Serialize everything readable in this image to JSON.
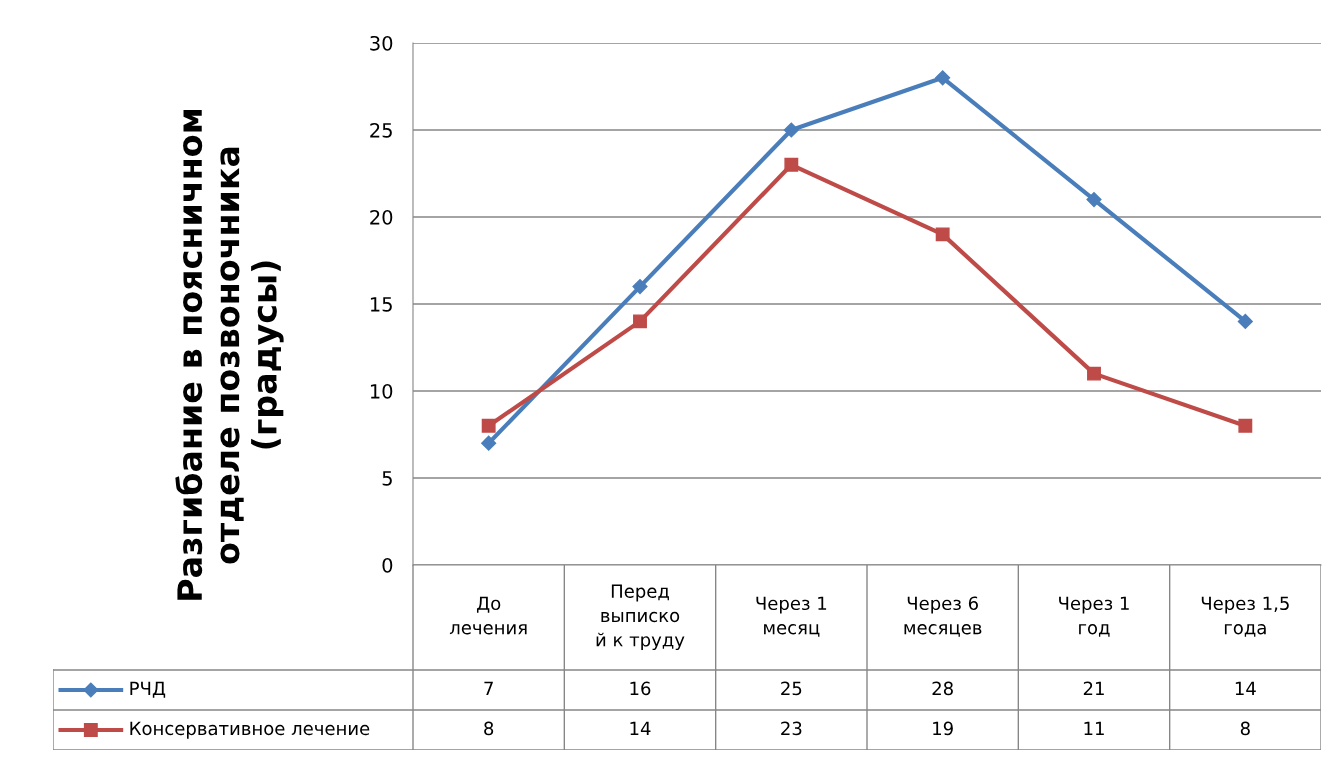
{
  "chart_data": {
    "type": "line",
    "ylabel": "Разгибание в поясничном\nотделе позвоночника\n(градусы)",
    "categories": [
      "До\nлечения",
      "Перед\nвыписко\nй к труду",
      "Через 1\nмесяц",
      "Через 6\nмесяцев",
      "Через 1\nгод",
      "Через 1,5\nгода"
    ],
    "series": [
      {
        "name": "РЧД",
        "color": "#4a7ebb",
        "marker": "diamond",
        "values": [
          7,
          16,
          25,
          28,
          21,
          14
        ]
      },
      {
        "name": "Консервативное лечение",
        "color": "#be4b48",
        "marker": "square",
        "values": [
          8,
          14,
          23,
          19,
          11,
          8
        ]
      }
    ],
    "ylim": [
      0,
      30
    ],
    "yticks": [
      0,
      5,
      10,
      15,
      20,
      25,
      30
    ],
    "grid": "y",
    "legend": "bottom",
    "data_labels": true,
    "line_style": "solid"
  }
}
